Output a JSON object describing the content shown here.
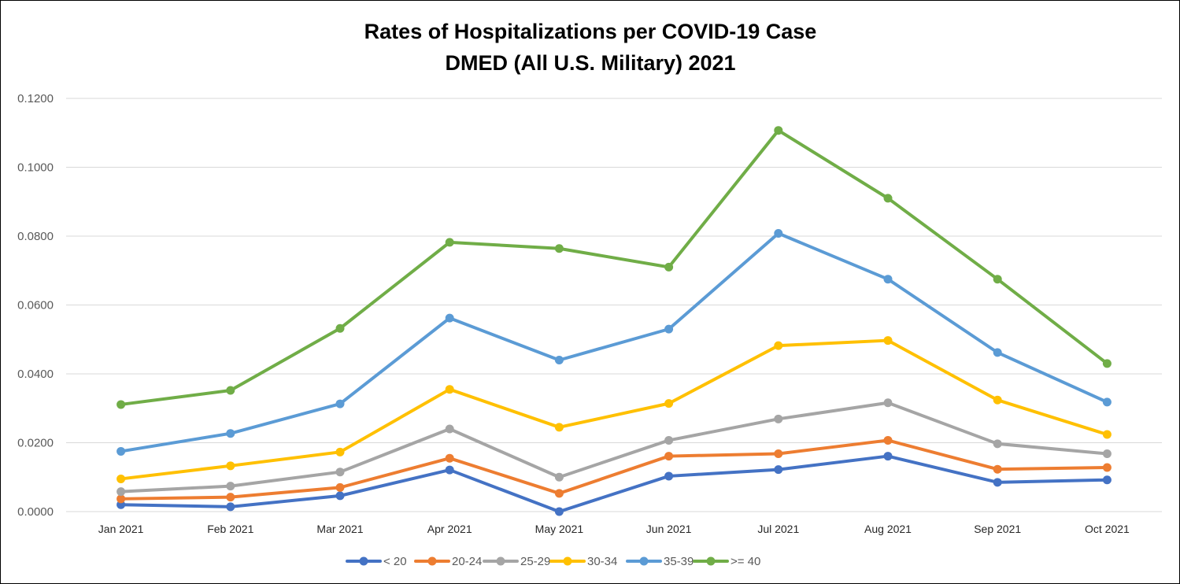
{
  "chart_data": {
    "type": "line",
    "title": "Rates of Hospitalizations per COVID-19 Case",
    "subtitle": "DMED (All U.S. Military) 2021",
    "xlabel": "",
    "ylabel": "",
    "ylim": [
      0,
      0.12
    ],
    "yticks": [
      "0.0000",
      "0.0200",
      "0.0400",
      "0.0600",
      "0.0800",
      "0.1000",
      "0.1200"
    ],
    "ytick_values": [
      0,
      0.02,
      0.04,
      0.06,
      0.08,
      0.1,
      0.12
    ],
    "grid": true,
    "legend_position": "bottom",
    "categories": [
      "Jan 2021",
      "Feb 2021",
      "Mar 2021",
      "Apr 2021",
      "May 2021",
      "Jun 2021",
      "Jul 2021",
      "Aug 2021",
      "Sep 2021",
      "Oct 2021"
    ],
    "series": [
      {
        "name": "< 20",
        "color": "#4472C4",
        "values": [
          0.002,
          0.0014,
          0.0046,
          0.0121,
          0.0,
          0.0103,
          0.0122,
          0.0161,
          0.0085,
          0.0092
        ]
      },
      {
        "name": "20-24",
        "color": "#ED7D31",
        "values": [
          0.0037,
          0.0042,
          0.007,
          0.0155,
          0.0053,
          0.0161,
          0.0168,
          0.0207,
          0.0123,
          0.0128
        ]
      },
      {
        "name": "25-29",
        "color": "#A5A5A5",
        "values": [
          0.0058,
          0.0074,
          0.0115,
          0.024,
          0.01,
          0.0207,
          0.0269,
          0.0316,
          0.0197,
          0.0168
        ]
      },
      {
        "name": "30-34",
        "color": "#FFC000",
        "values": [
          0.0095,
          0.0133,
          0.0173,
          0.0355,
          0.0245,
          0.0314,
          0.0482,
          0.0497,
          0.0324,
          0.0224
        ]
      },
      {
        "name": "35-39",
        "color": "#5B9BD5",
        "values": [
          0.0175,
          0.0227,
          0.0313,
          0.0562,
          0.044,
          0.053,
          0.0808,
          0.0675,
          0.0462,
          0.0318
        ]
      },
      {
        "name": ">= 40",
        "color": "#70AD47",
        "values": [
          0.0311,
          0.0352,
          0.0532,
          0.0782,
          0.0764,
          0.071,
          0.1107,
          0.091,
          0.0675,
          0.043
        ]
      }
    ]
  }
}
